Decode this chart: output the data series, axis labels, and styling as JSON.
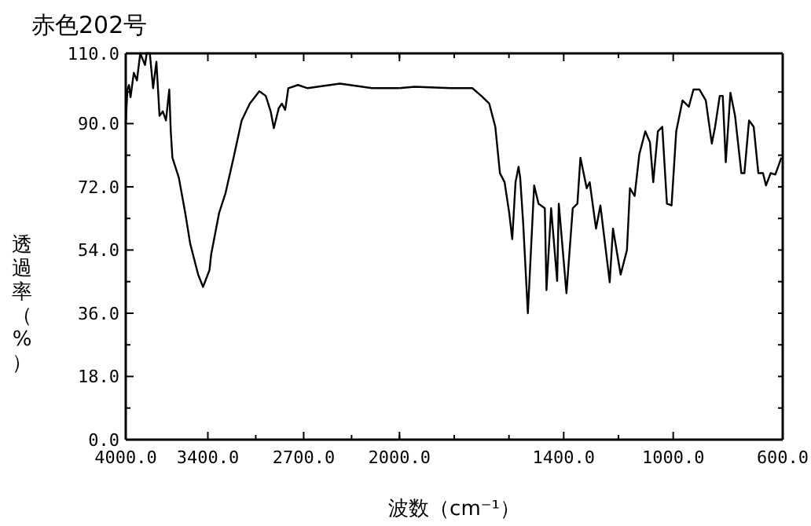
{
  "chart_data": [
    {
      "type": "line",
      "title": "赤色202号",
      "xlabel": "波数（cm⁻¹）",
      "ylabel": "透過率（%）",
      "xlim": [
        4000,
        2000
      ],
      "ylim": [
        0,
        110
      ],
      "xticks": [
        {
          "value": 4000,
          "label": "4000.0"
        },
        {
          "value": 3400,
          "label": "3400.0"
        },
        {
          "value": 3050,
          "label": null
        },
        {
          "value": 2700,
          "label": "2700.0"
        },
        {
          "value": 2350,
          "label": null
        },
        {
          "value": 2000,
          "label": "2000.0"
        }
      ],
      "yticks": [
        {
          "value": 0,
          "label": "0.0"
        },
        {
          "value": 9,
          "label": null
        },
        {
          "value": 18,
          "label": "18.0"
        },
        {
          "value": 27,
          "label": null
        },
        {
          "value": 36,
          "label": "36.0"
        },
        {
          "value": 45,
          "label": null
        },
        {
          "value": 54,
          "label": "54.0"
        },
        {
          "value": 63,
          "label": null
        },
        {
          "value": 72,
          "label": "72.0"
        },
        {
          "value": 81,
          "label": null
        },
        {
          "value": 90,
          "label": "90.0"
        },
        {
          "value": 99,
          "label": null
        },
        {
          "value": 110,
          "label": "110.0"
        }
      ],
      "grid": false,
      "series": [
        {
          "color": "#000000",
          "x": [
            4000,
            3988,
            3976,
            3965,
            3941,
            3918,
            3894,
            3859,
            3847,
            3824,
            3800,
            3776,
            3753,
            3729,
            3706,
            3682,
            3671,
            3659,
            3612,
            3565,
            3529,
            3471,
            3435,
            3388,
            3376,
            3318,
            3271,
            3212,
            3153,
            3094,
            3024,
            2977,
            2941,
            2918,
            2882,
            2859,
            2835,
            2812,
            2741,
            2671,
            2435,
            2200,
            2000
          ],
          "values": [
            90.0,
            99.7,
            101.0,
            97.5,
            104.5,
            102.3,
            110,
            106.7,
            110,
            110,
            100.1,
            107.6,
            92.2,
            93.5,
            90.9,
            99.7,
            87.8,
            80.3,
            74.6,
            64.5,
            55.8,
            47.0,
            43.5,
            48.3,
            52.7,
            64.5,
            70.2,
            80.3,
            90.9,
            95.7,
            99.2,
            97.9,
            93.5,
            88.7,
            94.4,
            95.7,
            93.9,
            100.1,
            101.0,
            100.1,
            101.4,
            100.1,
            100.1
          ]
        }
      ]
    },
    {
      "type": "line",
      "xlim": [
        2000,
        600
      ],
      "ylim": [
        0,
        110
      ],
      "tick_labels": "x",
      "xticks": [
        {
          "value": 2000,
          "label": null
        },
        {
          "value": 1800,
          "label": null
        },
        {
          "value": 1600,
          "label": null
        },
        {
          "value": 1400,
          "label": "1400.0"
        },
        {
          "value": 1200,
          "label": null
        },
        {
          "value": 1000,
          "label": "1000.0"
        },
        {
          "value": 600,
          "label": "600.0"
        }
      ],
      "yticks": [
        {
          "value": 0,
          "label": null
        },
        {
          "value": 9,
          "label": null
        },
        {
          "value": 18,
          "label": null
        },
        {
          "value": 27,
          "label": null
        },
        {
          "value": 36,
          "label": null
        },
        {
          "value": 45,
          "label": null
        },
        {
          "value": 54,
          "label": null
        },
        {
          "value": 63,
          "label": null
        },
        {
          "value": 72,
          "label": null
        },
        {
          "value": 81,
          "label": null
        },
        {
          "value": 90,
          "label": null
        },
        {
          "value": 99,
          "label": null
        },
        {
          "value": 110,
          "label": null
        }
      ],
      "grid": false,
      "series": [
        {
          "color": "#000000",
          "x": [
            2000,
            1944,
            1814,
            1734,
            1701,
            1672,
            1650,
            1633,
            1616,
            1599,
            1588,
            1576,
            1565,
            1559,
            1548,
            1531,
            1508,
            1492,
            1469,
            1463,
            1446,
            1424,
            1418,
            1390,
            1367,
            1350,
            1339,
            1316,
            1305,
            1282,
            1266,
            1232,
            1220,
            1192,
            1169,
            1158,
            1141,
            1124,
            1102,
            1085,
            1073,
            1056,
            1040,
            1023,
            1006,
            989,
            966,
            943,
            926,
            904,
            881,
            859,
            847,
            830,
            819,
            808,
            791,
            774,
            751,
            740,
            723,
            706,
            689,
            672,
            661,
            644,
            627,
            605
          ],
          "values": [
            100.1,
            100.5,
            100.1,
            100.1,
            97.9,
            95.7,
            89.1,
            75.9,
            73.3,
            64.5,
            57.1,
            73.3,
            77.7,
            74.6,
            61.5,
            36.0,
            72.4,
            67.2,
            65.9,
            42.6,
            65.9,
            45.2,
            67.2,
            41.7,
            65.9,
            67.2,
            80.3,
            71.6,
            73.3,
            60.1,
            66.7,
            44.8,
            60.1,
            47.0,
            54.0,
            71.6,
            69.4,
            81.2,
            87.8,
            84.7,
            73.3,
            87.8,
            89.1,
            67.2,
            66.7,
            87.8,
            96.6,
            94.8,
            99.7,
            99.7,
            96.6,
            84.3,
            89.1,
            97.9,
            97.9,
            79.0,
            98.8,
            92.2,
            75.9,
            75.9,
            90.9,
            89.1,
            75.9,
            75.9,
            72.4,
            75.9,
            75.5,
            80.3
          ]
        }
      ]
    }
  ]
}
